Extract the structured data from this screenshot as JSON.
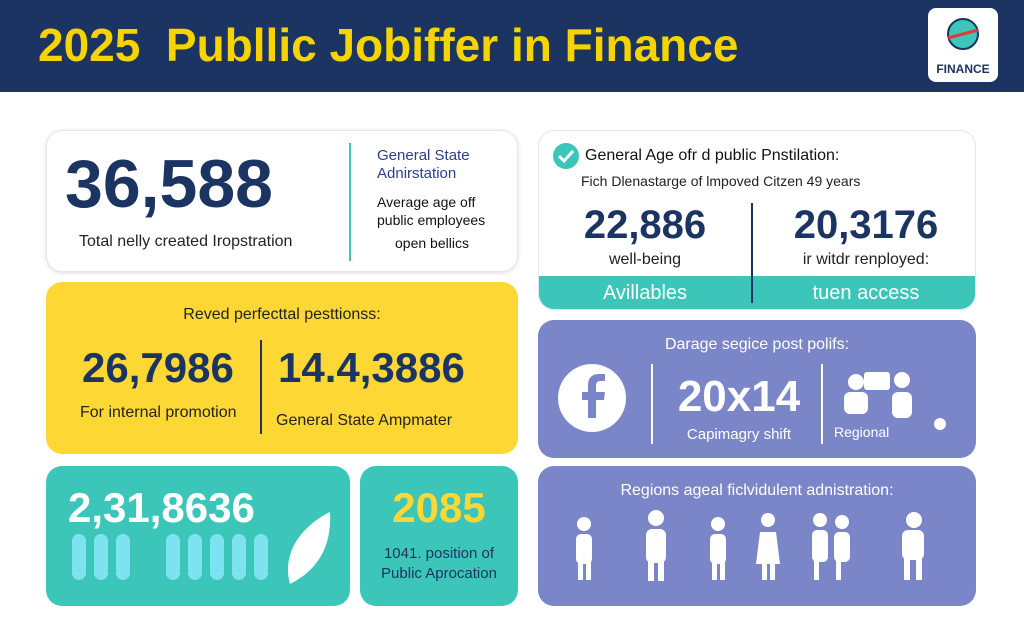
{
  "header": {
    "title": "2025  Publlic Jobiffer in Finance",
    "logo": "FINANCE"
  },
  "card_total": {
    "value": "36,588",
    "caption": "Total nelly created Iropstration",
    "items": [
      "General State Adnirstation",
      "Average age off public employees",
      "open bellics"
    ]
  },
  "card_positions": {
    "heading": "Reved perfecttal pesttionss:",
    "stats": [
      {
        "value": "26,7986",
        "label": "For internal promotion"
      },
      {
        "value": "14.4,3886",
        "label": "General State Ampmater"
      }
    ]
  },
  "card_teal": {
    "value": "2,31,8636"
  },
  "card_year": {
    "value": "2085",
    "caption": "1041. position of Public Aprocation"
  },
  "card_age": {
    "heading": "General Age ofr d public Pnstilation:",
    "subheading": "Fich Dlenastarge of lmpoved Citzen 49 years",
    "stats": [
      {
        "value": "22,886",
        "label": "well-being",
        "footer": "Avillables"
      },
      {
        "value": "20,3176",
        "label": "ir witdr renployed:",
        "footer": "tuen access"
      }
    ]
  },
  "card_service": {
    "heading": "Darage segice post polifs:",
    "value": "20x14",
    "caption": "Capimagry shift",
    "regional": "Regional"
  },
  "card_regions": {
    "heading": "Regions ageal ficlvidulent adnistration:"
  }
}
